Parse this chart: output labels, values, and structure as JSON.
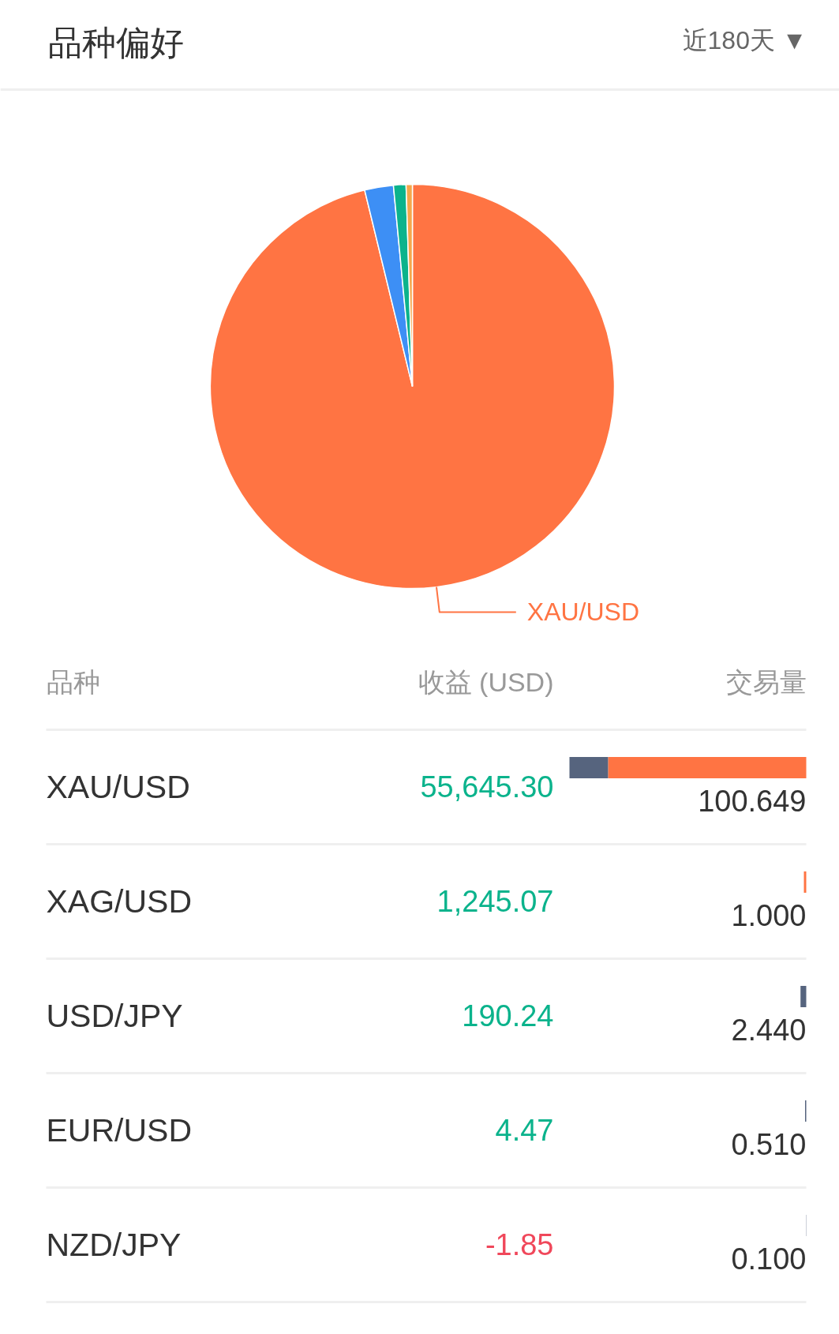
{
  "chart_data": [
    {
      "type": "pie",
      "title": "品种偏好",
      "subtitle": "近180天 ▼",
      "categories": [
        "XAU/USD",
        null,
        null,
        null
      ],
      "values": [
        96.2,
        2.3,
        1.0,
        0.5
      ],
      "colors": [
        "#ff7443",
        "#3d8ff5",
        "#0bb38c",
        "#f5a64b"
      ]
    },
    {
      "type": "bar",
      "orientation": "horizontal",
      "stacked": true,
      "ylabel": "品种",
      "xlabel": "交易量",
      "categories": [
        "XAU/USD",
        "XAG/USD",
        "USD/JPY",
        "EUR/USD",
        "NZD/JPY"
      ],
      "series": [
        {
          "color": "#ff7443",
          "values": [
            84.249,
            1.0,
            null,
            null,
            null
          ],
          "value_labels": [
            null,
            "1.000",
            null,
            null,
            null
          ]
        },
        {
          "color": "#56647e",
          "values": [
            16.4,
            null,
            2.44,
            0.51,
            0.1
          ],
          "value_labels": [
            null,
            null,
            "2.440",
            "0.510",
            "0.100"
          ]
        }
      ],
      "totals": [
        "100.649",
        null,
        null,
        null,
        null
      ],
      "tick_labels": "y"
    },
    {
      "type": "other",
      "title": "收益 (USD)",
      "annotations": [
        "55,645.30",
        "1,245.07",
        "190.24",
        "4.47",
        "-1.85"
      ],
      "colors": [
        "#0bb38c",
        "#0bb38c",
        "#0bb38c",
        "#0bb38c",
        "#f0475a"
      ]
    }
  ]
}
